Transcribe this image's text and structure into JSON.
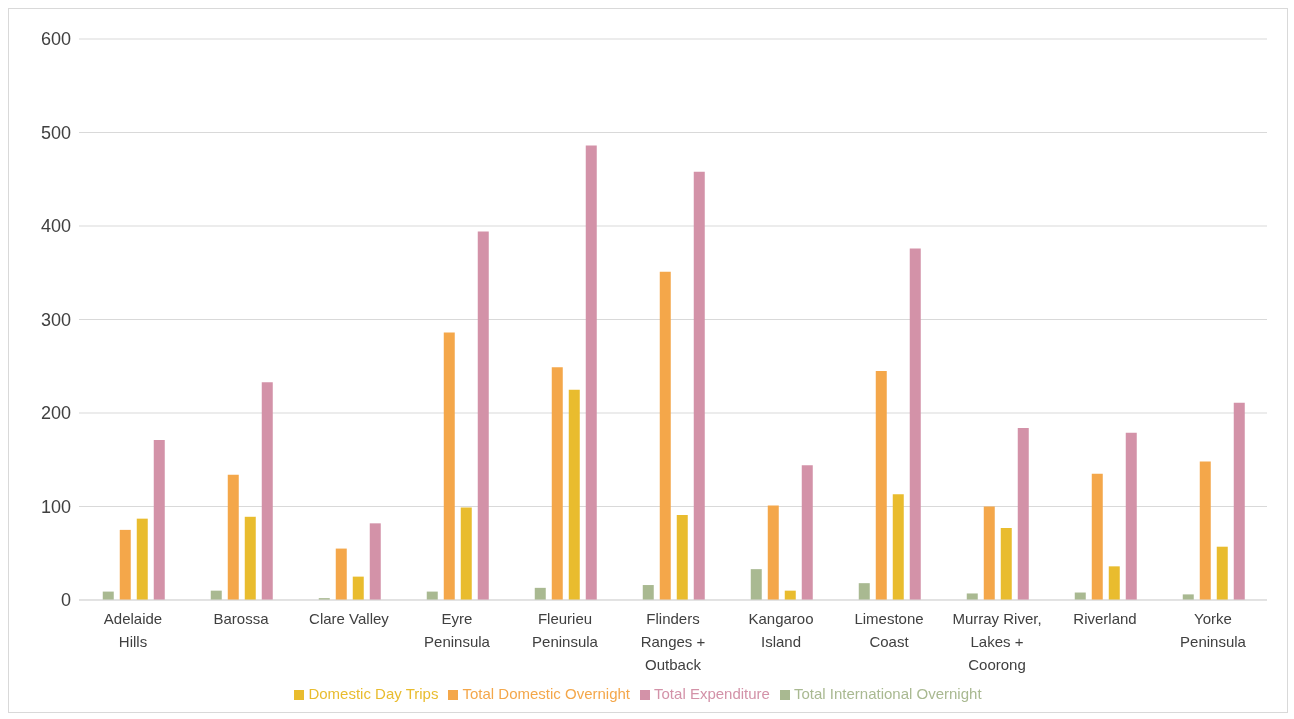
{
  "chart_data": {
    "type": "bar",
    "categories": [
      "Adelaide Hills",
      "Barossa",
      "Clare Valley",
      "Eyre Peninsula",
      "Fleurieu Peninsula",
      "Flinders Ranges + Outback",
      "Kangaroo Island",
      "Limestone Coast",
      "Murray River, Lakes + Coorong",
      "Riverland",
      "Yorke Peninsula"
    ],
    "series": [
      {
        "name": "Total International Overnight",
        "color": "#a9b991",
        "values": [
          9,
          10,
          2,
          9,
          13,
          16,
          33,
          18,
          7,
          8,
          6
        ]
      },
      {
        "name": "Total Domestic Overnight",
        "color": "#f4a74a",
        "values": [
          75,
          134,
          55,
          286,
          249,
          351,
          101,
          245,
          100,
          135,
          148
        ]
      },
      {
        "name": "Domestic Day Trips",
        "color": "#e9bc2e",
        "values": [
          87,
          89,
          25,
          99,
          225,
          91,
          10,
          113,
          77,
          36,
          57
        ]
      },
      {
        "name": "Total Expenditure",
        "color": "#d392a8",
        "values": [
          171,
          233,
          82,
          394,
          486,
          458,
          144,
          376,
          184,
          179,
          211
        ]
      }
    ],
    "ylim": [
      0,
      600
    ],
    "yticks": [
      0,
      100,
      200,
      300,
      400,
      500,
      600
    ],
    "grid": "y",
    "legend": "bottom"
  }
}
